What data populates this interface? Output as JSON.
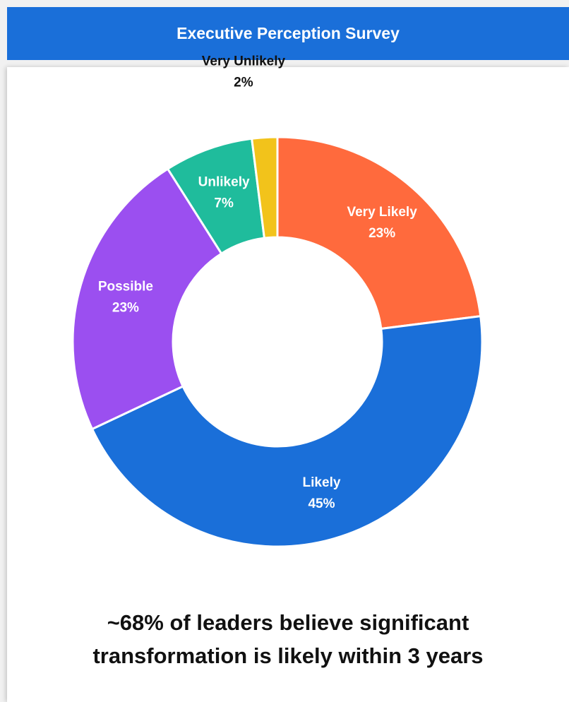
{
  "header": {
    "title": "Executive Perception Survey"
  },
  "colors": {
    "header_bg": "#1a6fd9",
    "very_likely": "#ff6a3d",
    "likely": "#1a6fd9",
    "possible": "#9b4ff0",
    "unlikely": "#1fbc9c",
    "very_unlikely": "#f2c31b"
  },
  "chart_data": {
    "type": "pie",
    "style": "donut",
    "start": "12 o'clock, clockwise",
    "slices": [
      {
        "label": "Very Likely",
        "value": 23,
        "value_label": "23%",
        "color": "#ff6a3d",
        "label_color": "#ffffff"
      },
      {
        "label": "Likely",
        "value": 45,
        "value_label": "45%",
        "color": "#1a6fd9",
        "label_color": "#ffffff"
      },
      {
        "label": "Possible",
        "value": 23,
        "value_label": "23%",
        "color": "#9b4ff0",
        "label_color": "#ffffff"
      },
      {
        "label": "Unlikely",
        "value": 7,
        "value_label": "7%",
        "color": "#1fbc9c",
        "label_color": "#ffffff"
      },
      {
        "label": "Very Unlikely",
        "value": 2,
        "value_label": "2%",
        "color": "#f2c31b",
        "label_color": "#111111",
        "label_outside": true
      }
    ]
  },
  "caption": {
    "line1": "~68% of leaders believe significant",
    "line2": "transformation is likely within 3 years"
  }
}
